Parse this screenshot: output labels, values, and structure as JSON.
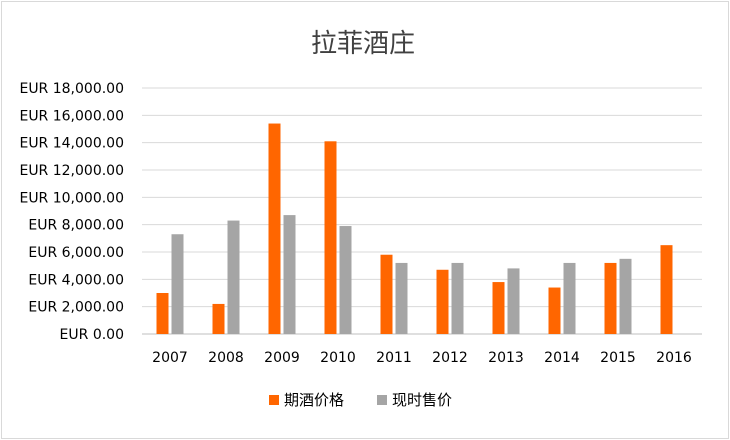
{
  "chart_data": {
    "type": "bar",
    "title": "拉菲酒庄",
    "categories": [
      "2007",
      "2008",
      "2009",
      "2010",
      "2011",
      "2012",
      "2013",
      "2014",
      "2015",
      "2016"
    ],
    "series": [
      {
        "name": "期酒价格",
        "color": "#ff6600",
        "values": [
          3000,
          2200,
          15400,
          14100,
          5800,
          4700,
          3800,
          3400,
          5200,
          6500
        ]
      },
      {
        "name": "现时售价",
        "color": "#a5a5a5",
        "values": [
          7300,
          8300,
          8700,
          7900,
          5200,
          5200,
          4800,
          5200,
          5500,
          null
        ]
      }
    ],
    "y_ticks": [
      "EUR 0.00",
      "EUR 2,000.00",
      "EUR 4,000.00",
      "EUR 6,000.00",
      "EUR 8,000.00",
      "EUR 10,000.00",
      "EUR 12,000.00",
      "EUR 14,000.00",
      "EUR 16,000.00",
      "EUR 18,000.00"
    ],
    "ylim": [
      0,
      18000
    ],
    "grid": true,
    "legend_position": "bottom"
  }
}
